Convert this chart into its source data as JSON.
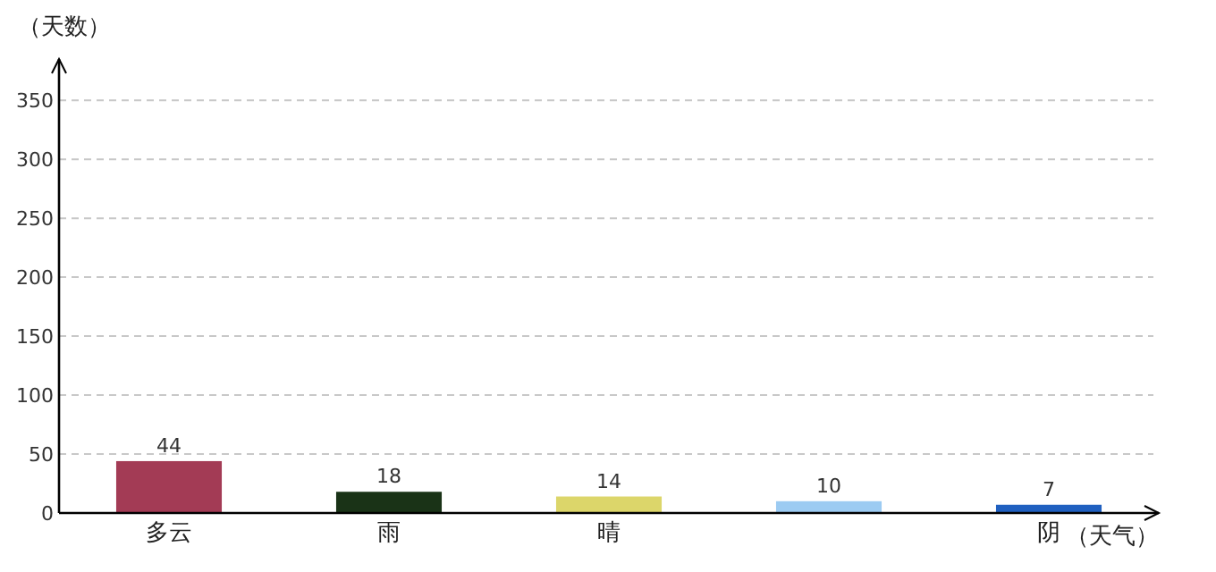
{
  "chart_data": {
    "type": "bar",
    "xlabel": "（天气）",
    "ylabel": "（天数）",
    "categories": [
      "多云",
      "雨",
      "晴",
      null,
      "阴"
    ],
    "values": [
      44,
      18,
      14,
      10,
      7
    ],
    "colors": [
      "#a33b55",
      "#1a3317",
      "#dcd66a",
      "#9ccbf2",
      "#2060c0"
    ],
    "ylim": [
      0,
      385
    ],
    "yticks": [
      0,
      50,
      100,
      150,
      200,
      250,
      300,
      350
    ],
    "grid": "y",
    "data_labels": true
  }
}
